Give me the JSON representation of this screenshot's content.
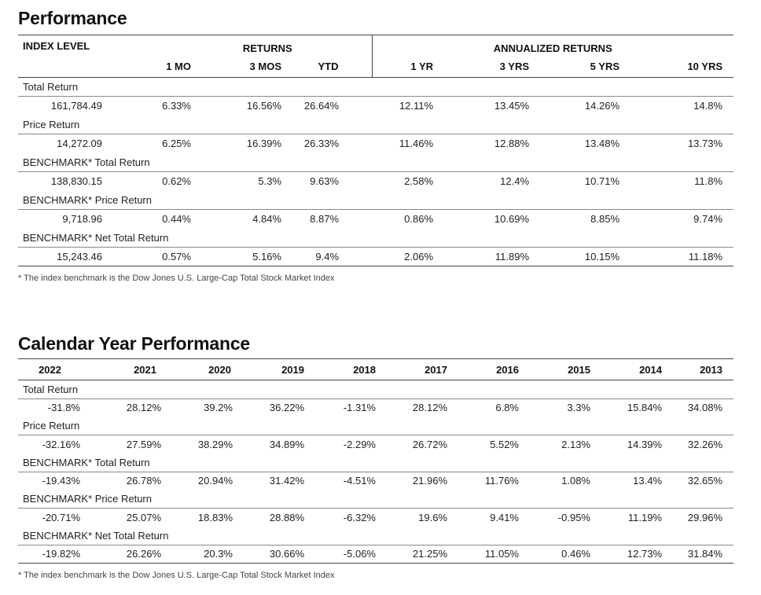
{
  "performance": {
    "title": "Performance",
    "header": {
      "index_level": "INDEX LEVEL",
      "returns": "RETURNS",
      "annualized_returns": "ANNUALIZED RETURNS",
      "columns": [
        "1 MO",
        "3 MOS",
        "YTD",
        "1 YR",
        "3 YRS",
        "5 YRS",
        "10 YRS"
      ]
    },
    "rows": [
      {
        "label": "Total Return",
        "index_level": "161,784.49",
        "values": [
          "6.33%",
          "16.56%",
          "26.64%",
          "12.11%",
          "13.45%",
          "14.26%",
          "14.8%"
        ]
      },
      {
        "label": "Price Return",
        "index_level": "14,272.09",
        "values": [
          "6.25%",
          "16.39%",
          "26.33%",
          "11.46%",
          "12.88%",
          "13.48%",
          "13.73%"
        ]
      },
      {
        "label": "BENCHMARK* Total Return",
        "index_level": "138,830.15",
        "values": [
          "0.62%",
          "5.3%",
          "9.63%",
          "2.58%",
          "12.4%",
          "10.71%",
          "11.8%"
        ]
      },
      {
        "label": "BENCHMARK* Price Return",
        "index_level": "9,718.96",
        "values": [
          "0.44%",
          "4.84%",
          "8.87%",
          "0.86%",
          "10.69%",
          "8.85%",
          "9.74%"
        ]
      },
      {
        "label": "BENCHMARK* Net Total Return",
        "index_level": "15,243.46",
        "values": [
          "0.57%",
          "5.16%",
          "9.4%",
          "2.06%",
          "11.89%",
          "10.15%",
          "11.18%"
        ]
      }
    ],
    "footnote": "* The index benchmark is the  Dow Jones U.S. Large-Cap Total Stock Market Index"
  },
  "calendar": {
    "title": "Calendar Year Performance",
    "years": [
      "2022",
      "2021",
      "2020",
      "2019",
      "2018",
      "2017",
      "2016",
      "2015",
      "2014",
      "2013"
    ],
    "rows": [
      {
        "label": "Total Return",
        "values": [
          "-31.8%",
          "28.12%",
          "39.2%",
          "36.22%",
          "-1.31%",
          "28.12%",
          "6.8%",
          "3.3%",
          "15.84%",
          "34.08%"
        ]
      },
      {
        "label": "Price Return",
        "values": [
          "-32.16%",
          "27.59%",
          "38.29%",
          "34.89%",
          "-2.29%",
          "26.72%",
          "5.52%",
          "2.13%",
          "14.39%",
          "32.26%"
        ]
      },
      {
        "label": "BENCHMARK* Total Return",
        "values": [
          "-19.43%",
          "26.78%",
          "20.94%",
          "31.42%",
          "-4.51%",
          "21.96%",
          "11.76%",
          "1.08%",
          "13.4%",
          "32.65%"
        ]
      },
      {
        "label": "BENCHMARK* Price Return",
        "values": [
          "-20.71%",
          "25.07%",
          "18.83%",
          "28.88%",
          "-6.32%",
          "19.6%",
          "9.41%",
          "-0.95%",
          "11.19%",
          "29.96%"
        ]
      },
      {
        "label": "BENCHMARK* Net Total Return",
        "values": [
          "-19.82%",
          "26.26%",
          "20.3%",
          "30.66%",
          "-5.06%",
          "21.25%",
          "11.05%",
          "0.46%",
          "12.73%",
          "31.84%"
        ]
      }
    ],
    "footnote": "* The index benchmark is the  Dow Jones U.S. Large-Cap Total Stock Market Index"
  }
}
